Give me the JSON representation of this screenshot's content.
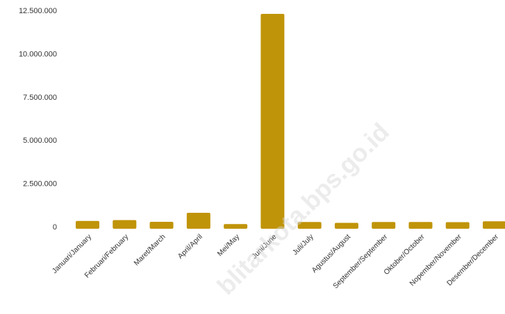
{
  "chart_data": {
    "type": "bar",
    "categories": [
      "Januari/January",
      "Februari/February",
      "Maret/March",
      "April/April",
      "Mei/May",
      "Juni/June",
      "Juli/July",
      "Agustus/August",
      "September/September",
      "Oktober/October",
      "Nopember/November",
      "Desember/December"
    ],
    "values": [
      330000,
      380000,
      280000,
      800000,
      150000,
      12300000,
      270000,
      220000,
      270000,
      270000,
      260000,
      310000
    ],
    "title": "",
    "xlabel": "",
    "ylabel": "",
    "ylim": [
      0,
      12500000
    ],
    "yticks": [
      0,
      2500000,
      5000000,
      7500000,
      10000000,
      12500000
    ],
    "ytick_labels": [
      "0",
      "2.500.000",
      "5.000.000",
      "7.500.000",
      "10.000.000",
      "12.500.000"
    ],
    "grid": false,
    "legend": "none",
    "bar_color": "#c09408"
  },
  "watermark": "blitarkota.bps.go.id"
}
